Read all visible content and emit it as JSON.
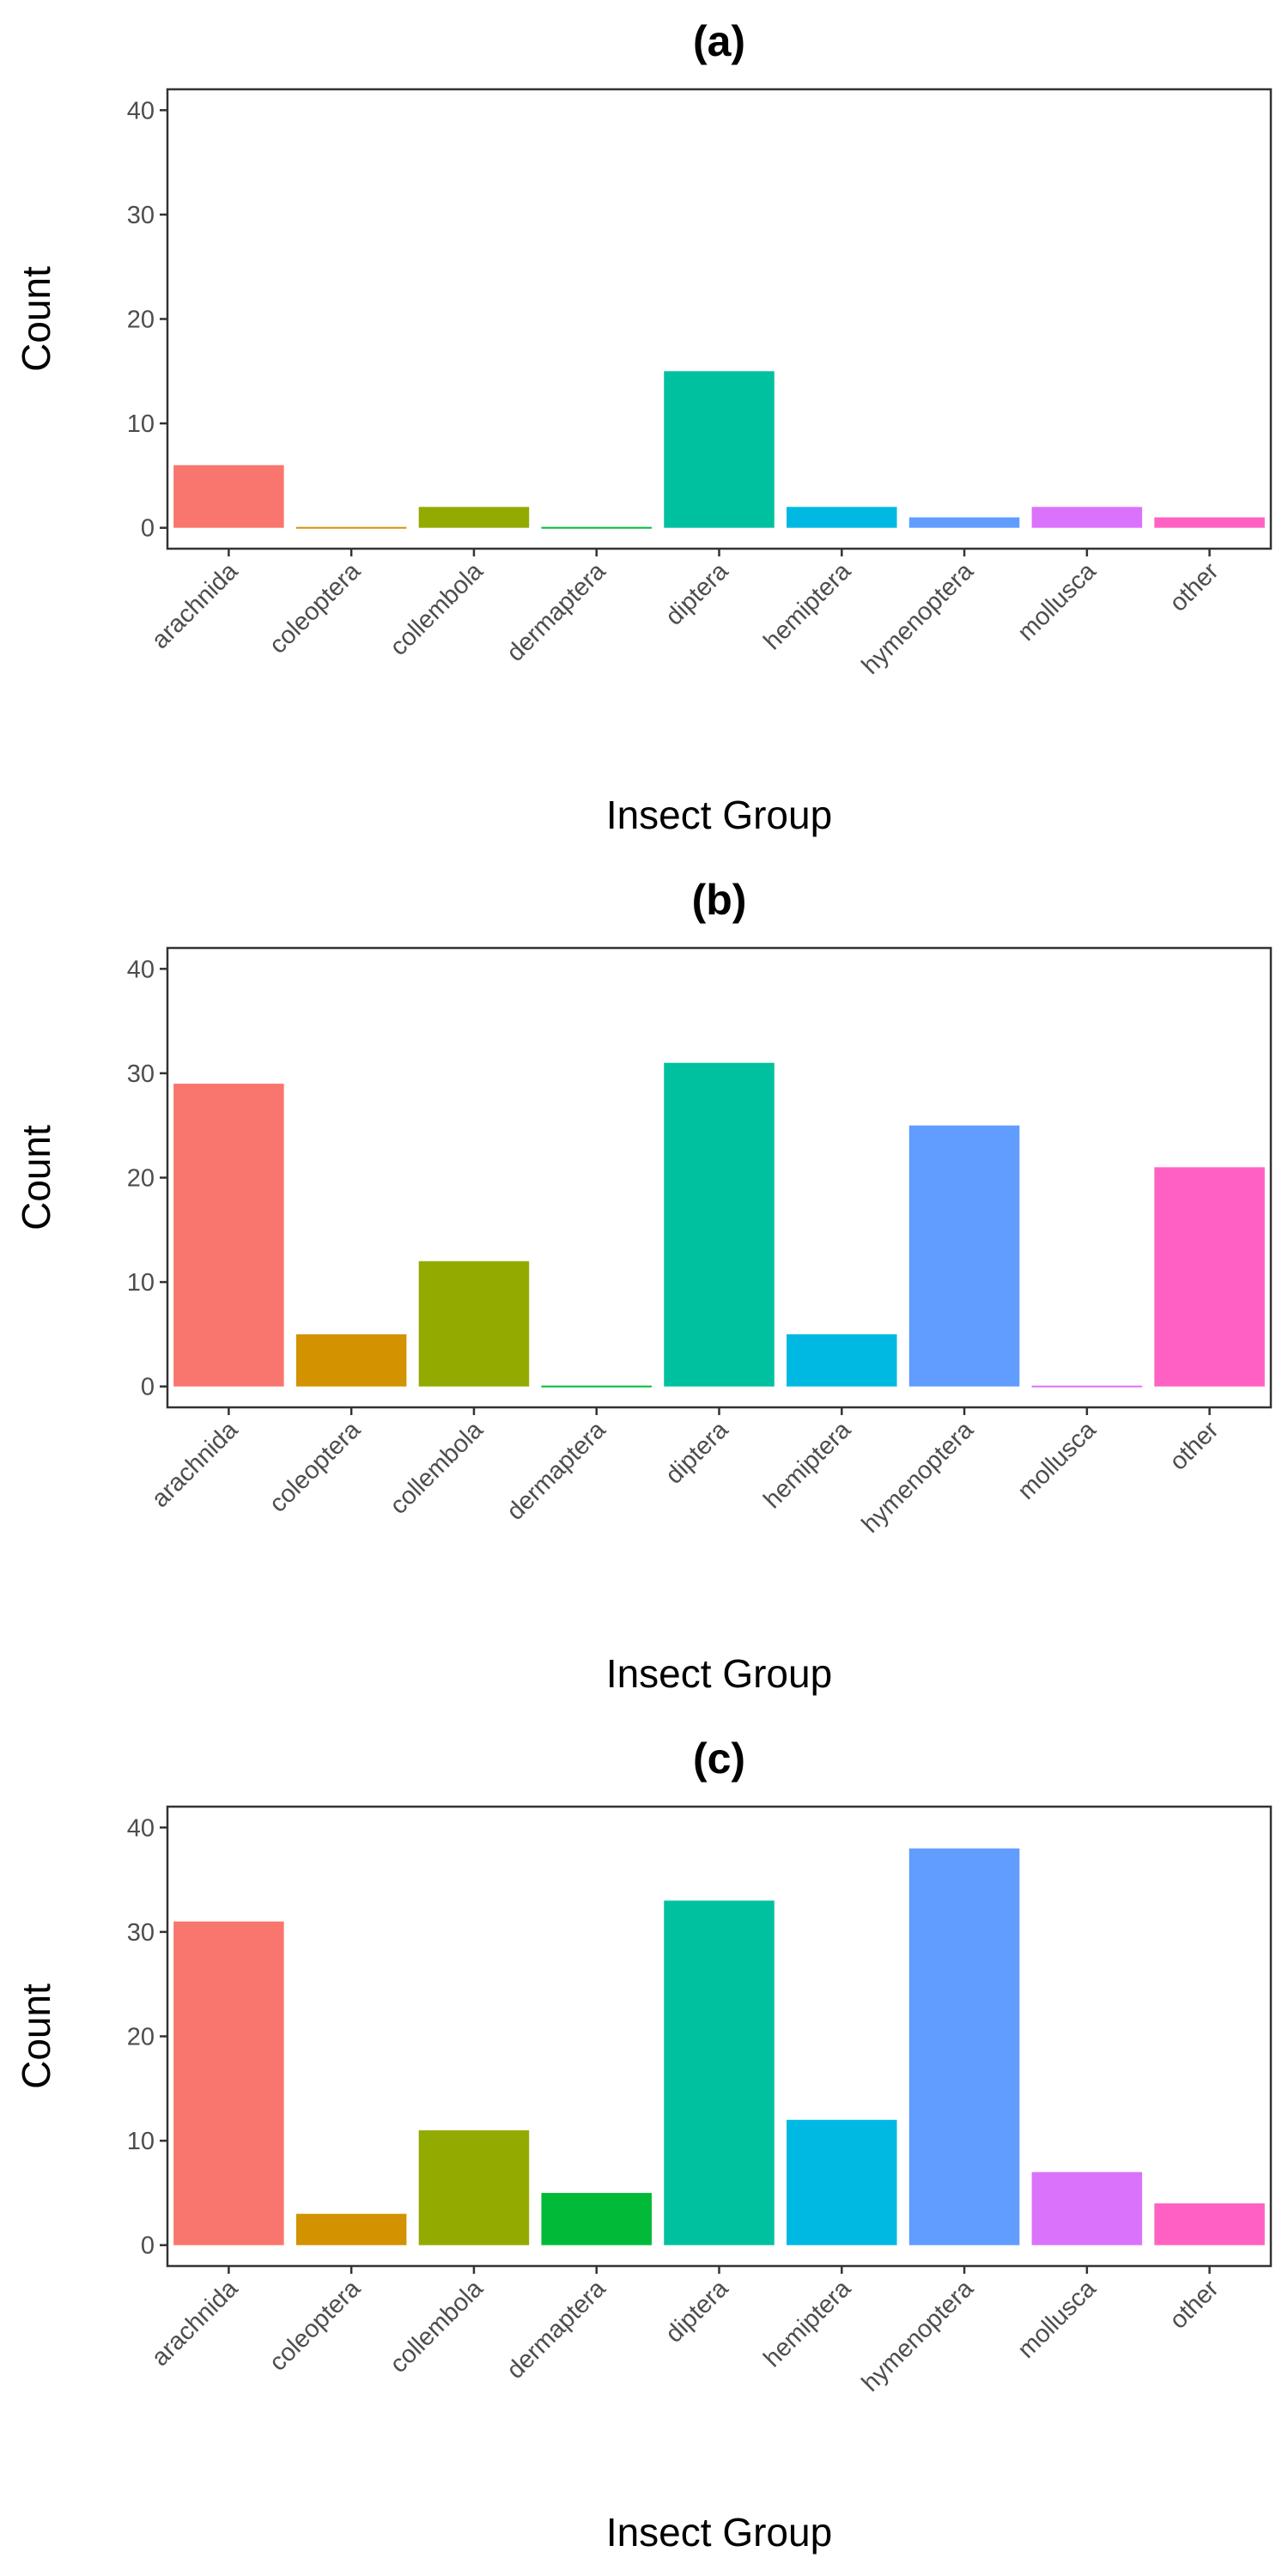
{
  "chart_data": [
    {
      "type": "bar",
      "title": "(a)",
      "xlabel": "Insect Group",
      "ylabel": "Count",
      "ylim": [
        -2,
        42
      ],
      "yticks": [
        0,
        10,
        20,
        30,
        40
      ],
      "grid": false,
      "categories": [
        "arachnida",
        "coleoptera",
        "collembola",
        "dermaptera",
        "diptera",
        "hemiptera",
        "hymenoptera",
        "mollusca",
        "other"
      ],
      "values": [
        6,
        0,
        2,
        0,
        15,
        2,
        1,
        2,
        1
      ],
      "colors": [
        "#F8766D",
        "#D39200",
        "#93AA00",
        "#00BA38",
        "#00C19F",
        "#00B9E3",
        "#619CFF",
        "#DB72FB",
        "#FF61C3"
      ]
    },
    {
      "type": "bar",
      "title": "(b)",
      "xlabel": "Insect Group",
      "ylabel": "Count",
      "ylim": [
        -2,
        42
      ],
      "yticks": [
        0,
        10,
        20,
        30,
        40
      ],
      "grid": false,
      "categories": [
        "arachnida",
        "coleoptera",
        "collembola",
        "dermaptera",
        "diptera",
        "hemiptera",
        "hymenoptera",
        "mollusca",
        "other"
      ],
      "values": [
        29,
        5,
        12,
        0,
        31,
        5,
        25,
        0,
        21
      ],
      "colors": [
        "#F8766D",
        "#D39200",
        "#93AA00",
        "#00BA38",
        "#00C19F",
        "#00B9E3",
        "#619CFF",
        "#DB72FB",
        "#FF61C3"
      ]
    },
    {
      "type": "bar",
      "title": "(c)",
      "xlabel": "Insect Group",
      "ylabel": "Count",
      "ylim": [
        -2,
        42
      ],
      "yticks": [
        0,
        10,
        20,
        30,
        40
      ],
      "grid": false,
      "categories": [
        "arachnida",
        "coleoptera",
        "collembola",
        "dermaptera",
        "diptera",
        "hemiptera",
        "hymenoptera",
        "mollusca",
        "other"
      ],
      "values": [
        31,
        3,
        11,
        5,
        33,
        12,
        38,
        7,
        4
      ],
      "colors": [
        "#F8766D",
        "#D39200",
        "#93AA00",
        "#00BA38",
        "#00C19F",
        "#00B9E3",
        "#619CFF",
        "#DB72FB",
        "#FF61C3"
      ]
    }
  ]
}
